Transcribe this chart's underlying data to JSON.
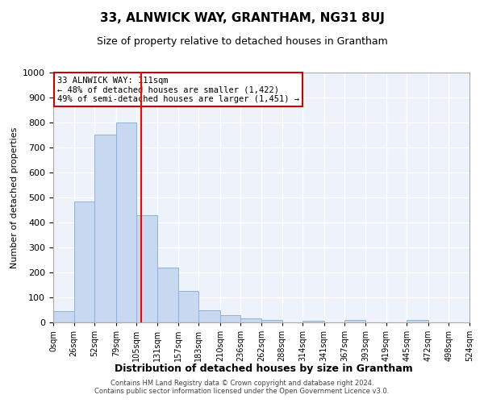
{
  "title": "33, ALNWICK WAY, GRANTHAM, NG31 8UJ",
  "subtitle": "Size of property relative to detached houses in Grantham",
  "xlabel": "Distribution of detached houses by size in Grantham",
  "ylabel": "Number of detached properties",
  "bar_color": "#c8d8f0",
  "bar_edge_color": "#8ab4d8",
  "background_color": "#eef2fa",
  "grid_color": "#ffffff",
  "bins": [
    0,
    26,
    52,
    79,
    105,
    131,
    157,
    183,
    210,
    236,
    262,
    288,
    314,
    341,
    367,
    393,
    419,
    445,
    472,
    498,
    524
  ],
  "bin_labels": [
    "0sqm",
    "26sqm",
    "52sqm",
    "79sqm",
    "105sqm",
    "131sqm",
    "157sqm",
    "183sqm",
    "210sqm",
    "236sqm",
    "262sqm",
    "288sqm",
    "314sqm",
    "341sqm",
    "367sqm",
    "393sqm",
    "419sqm",
    "445sqm",
    "472sqm",
    "498sqm",
    "524sqm"
  ],
  "values": [
    45,
    485,
    750,
    800,
    430,
    220,
    125,
    50,
    28,
    15,
    10,
    0,
    8,
    0,
    10,
    0,
    0,
    10,
    0,
    0
  ],
  "red_line_x": 111,
  "ylim": [
    0,
    1000
  ],
  "yticks": [
    0,
    100,
    200,
    300,
    400,
    500,
    600,
    700,
    800,
    900,
    1000
  ],
  "annotation_title": "33 ALNWICK WAY: 111sqm",
  "annotation_line1": "← 48% of detached houses are smaller (1,422)",
  "annotation_line2": "49% of semi-detached houses are larger (1,451) →",
  "annotation_box_color": "#ffffff",
  "annotation_box_edge": "#cc0000",
  "footer_line1": "Contains HM Land Registry data © Crown copyright and database right 2024.",
  "footer_line2": "Contains public sector information licensed under the Open Government Licence v3.0."
}
